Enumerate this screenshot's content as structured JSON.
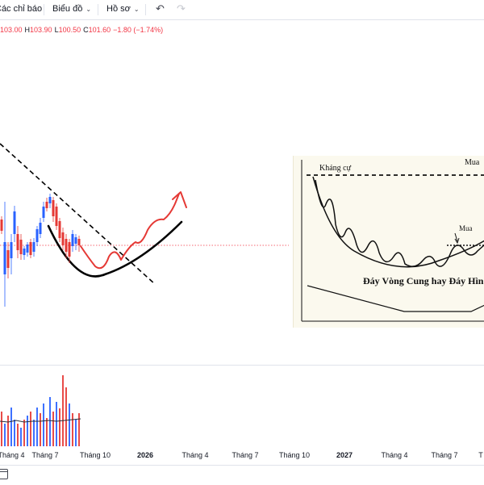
{
  "toolbar": {
    "indicators_label": "Các chỉ báo",
    "chart_label": "Biểu đồ",
    "profile_label": "Hồ sơ",
    "undo_icon": "undo-icon",
    "redo_icon": "redo-icon"
  },
  "ohlc": {
    "open_value": "103.00",
    "high_label": "H",
    "high_value": "103.90",
    "low_label": "L",
    "low_value": "100.50",
    "close_label": "C",
    "close_value": "101.60",
    "change": "−1.80 (−1.74%)"
  },
  "colors": {
    "up": "#2962ff",
    "down": "#e53935",
    "price_line": "#f23645",
    "drawing_red": "#e53935"
  },
  "overlay_labels": {
    "resistance": "Kháng cự",
    "buy_top": "Mua",
    "buy": "Mua",
    "caption": "Đáy Vòng Cung hay Đáy Hìn"
  },
  "xaxis": {
    "ticks": [
      "Tháng 4",
      "Tháng 7",
      "Tháng 10",
      "2026",
      "Tháng 4",
      "Tháng 7",
      "Tháng 10",
      "2027",
      "Tháng 4",
      "Tháng 7",
      "T"
    ]
  },
  "bottom": {
    "calendar_icon": "calendar-icon"
  }
}
